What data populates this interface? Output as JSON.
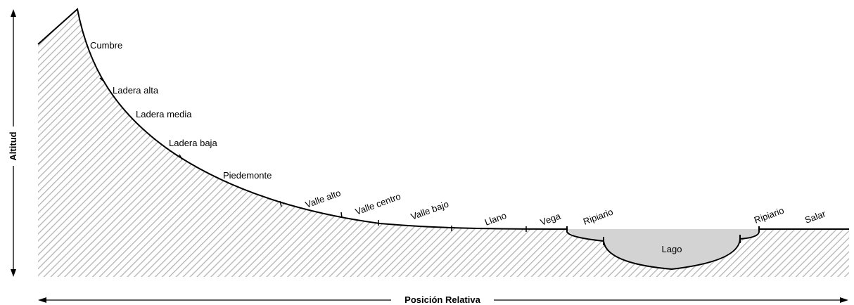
{
  "axes": {
    "y_title": "Altitud",
    "x_title": "Posición Relativa"
  },
  "zones": [
    "Cumbre",
    "Ladera alta",
    "Ladera media",
    "Ladera baja",
    "Piedemonte",
    "Valle alto",
    "Valle centro",
    "Valle bajo",
    "Llano",
    "Vega",
    "Ripiario",
    "Lago",
    "Ripiario",
    "Salar"
  ],
  "colors": {
    "hatch": "#b4b4b4",
    "lake_fill": "#d3d3d3",
    "outline": "#000000"
  }
}
